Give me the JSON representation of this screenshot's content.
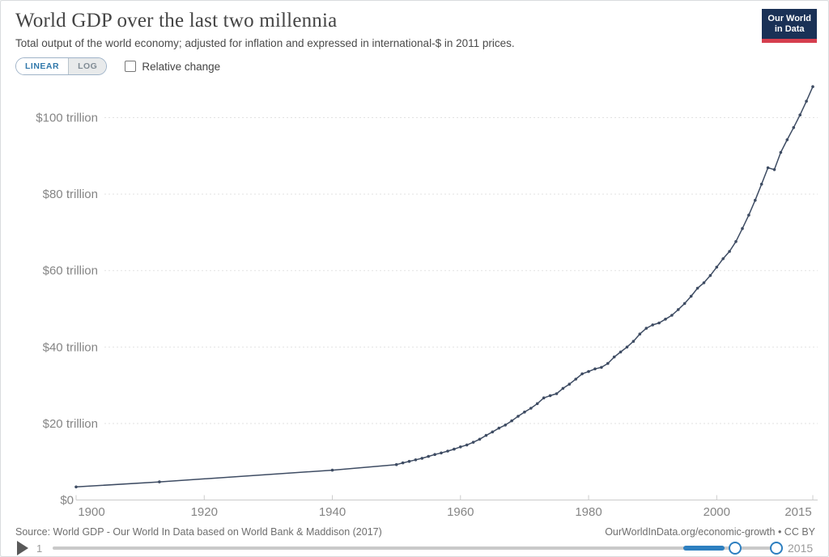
{
  "header": {
    "title": "World GDP over the last two millennia",
    "subtitle": "Total output of the world economy; adjusted for inflation and expressed in international-$ in 2011 prices.",
    "logo": {
      "line1": "Our World",
      "line2": "in Data"
    }
  },
  "controls": {
    "scale_linear": "LINEAR",
    "scale_log": "LOG",
    "active_scale": "LINEAR",
    "relative_change_label": "Relative change",
    "relative_change_checked": false
  },
  "chart_data": {
    "type": "line",
    "title": "World GDP over the last two millennia",
    "unit": "international-$ in 2011 prices, trillions",
    "grid": "horizontal-dashed",
    "legend_position": "none",
    "xlim": [
      1900,
      2015
    ],
    "ylim_trillions": [
      0,
      112
    ],
    "x_ticks": [
      1900,
      1920,
      1940,
      1960,
      1980,
      2000,
      2015
    ],
    "x_tick_labels": [
      "1900",
      "1920",
      "1940",
      "1960",
      "1980",
      "2000",
      "2015"
    ],
    "y_tick_values_trillions": [
      0,
      20,
      40,
      60,
      80,
      100
    ],
    "y_tick_labels": [
      "$0",
      "$20 trillion",
      "$40 trillion",
      "$60 trillion",
      "$80 trillion",
      "$100 trillion"
    ],
    "series": [
      {
        "name": "World",
        "color": "#3e4c63",
        "points": [
          [
            1900,
            3.42
          ],
          [
            1913,
            4.74
          ],
          [
            1940,
            7.81
          ],
          [
            1950,
            9.25
          ],
          [
            1951,
            9.7
          ],
          [
            1952,
            10.1
          ],
          [
            1953,
            10.5
          ],
          [
            1954,
            10.9
          ],
          [
            1955,
            11.4
          ],
          [
            1956,
            11.9
          ],
          [
            1957,
            12.3
          ],
          [
            1958,
            12.8
          ],
          [
            1959,
            13.3
          ],
          [
            1960,
            13.9
          ],
          [
            1961,
            14.4
          ],
          [
            1962,
            15.1
          ],
          [
            1963,
            15.9
          ],
          [
            1964,
            16.9
          ],
          [
            1965,
            17.8
          ],
          [
            1966,
            18.8
          ],
          [
            1967,
            19.6
          ],
          [
            1968,
            20.7
          ],
          [
            1969,
            21.9
          ],
          [
            1970,
            23.0
          ],
          [
            1971,
            24.0
          ],
          [
            1972,
            25.2
          ],
          [
            1973,
            26.7
          ],
          [
            1974,
            27.3
          ],
          [
            1975,
            27.8
          ],
          [
            1976,
            29.2
          ],
          [
            1977,
            30.3
          ],
          [
            1978,
            31.6
          ],
          [
            1979,
            33.0
          ],
          [
            1980,
            33.6
          ],
          [
            1981,
            34.3
          ],
          [
            1982,
            34.7
          ],
          [
            1983,
            35.7
          ],
          [
            1984,
            37.4
          ],
          [
            1985,
            38.7
          ],
          [
            1986,
            40.0
          ],
          [
            1987,
            41.5
          ],
          [
            1988,
            43.4
          ],
          [
            1989,
            44.9
          ],
          [
            1990,
            45.8
          ],
          [
            1991,
            46.3
          ],
          [
            1992,
            47.3
          ],
          [
            1993,
            48.3
          ],
          [
            1994,
            49.8
          ],
          [
            1995,
            51.4
          ],
          [
            1996,
            53.3
          ],
          [
            1997,
            55.4
          ],
          [
            1998,
            56.8
          ],
          [
            1999,
            58.7
          ],
          [
            2000,
            60.9
          ],
          [
            2001,
            63.1
          ],
          [
            2002,
            65.0
          ],
          [
            2003,
            67.6
          ],
          [
            2004,
            71.0
          ],
          [
            2005,
            74.5
          ],
          [
            2006,
            78.4
          ],
          [
            2007,
            82.6
          ],
          [
            2008,
            86.9
          ],
          [
            2009,
            86.4
          ],
          [
            2010,
            90.9
          ],
          [
            2011,
            94.2
          ],
          [
            2012,
            97.4
          ],
          [
            2013,
            100.7
          ],
          [
            2014,
            104.3
          ],
          [
            2015,
            108.1
          ]
        ]
      }
    ]
  },
  "footer": {
    "source": "Source: World GDP - Our World In Data based on World Bank & Maddison (2017)",
    "attribution": "OurWorldInData.org/economic-growth • CC BY"
  },
  "timeline": {
    "start_label": "1",
    "end_label": "2015",
    "selected_range": [
      "1900",
      "2015"
    ]
  },
  "colors": {
    "line": "#3e4c63",
    "axis_text": "#858585",
    "grid": "#e2e2e2",
    "accent_blue": "#2d7fc0",
    "logo_bg": "#1a3156",
    "logo_red": "#d63e4e"
  }
}
